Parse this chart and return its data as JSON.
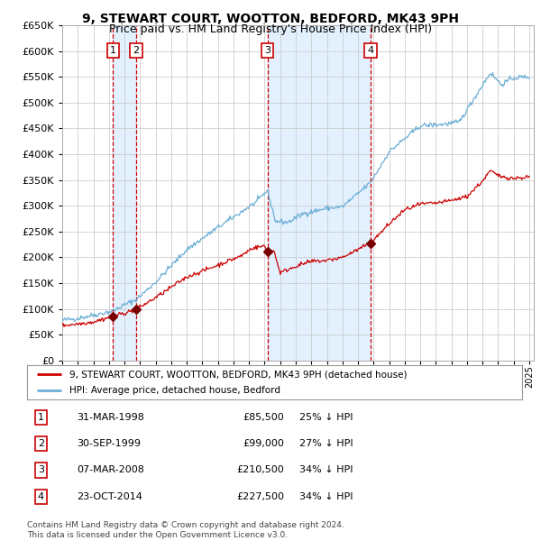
{
  "title": "9, STEWART COURT, WOOTTON, BEDFORD, MK43 9PH",
  "subtitle": "Price paid vs. HM Land Registry's House Price Index (HPI)",
  "ylim": [
    0,
    650000
  ],
  "yticks": [
    0,
    50000,
    100000,
    150000,
    200000,
    250000,
    300000,
    350000,
    400000,
    450000,
    500000,
    550000,
    600000,
    650000
  ],
  "hpi_color": "#6baed6",
  "price_color": "#cc0000",
  "grid_color": "#cccccc",
  "bg_color": "#ffffff",
  "sale_marker_color": "#7a0000",
  "vline_color": "#cc0000",
  "shade_color": "#ddeeff",
  "transactions": [
    {
      "num": 1,
      "date": "31-MAR-1998",
      "price": 85500,
      "pct": "25% ↓ HPI",
      "year_float": 1998.25
    },
    {
      "num": 2,
      "date": "30-SEP-1999",
      "price": 99000,
      "pct": "27% ↓ HPI",
      "year_float": 1999.75
    },
    {
      "num": 3,
      "date": "07-MAR-2008",
      "price": 210500,
      "pct": "34% ↓ HPI",
      "year_float": 2008.18
    },
    {
      "num": 4,
      "date": "23-OCT-2014",
      "price": 227500,
      "pct": "34% ↓ HPI",
      "year_float": 2014.81
    }
  ],
  "legend_entries": [
    "9, STEWART COURT, WOOTTON, BEDFORD, MK43 9PH (detached house)",
    "HPI: Average price, detached house, Bedford"
  ],
  "footer1": "Contains HM Land Registry data © Crown copyright and database right 2024.",
  "footer2": "This data is licensed under the Open Government Licence v3.0."
}
